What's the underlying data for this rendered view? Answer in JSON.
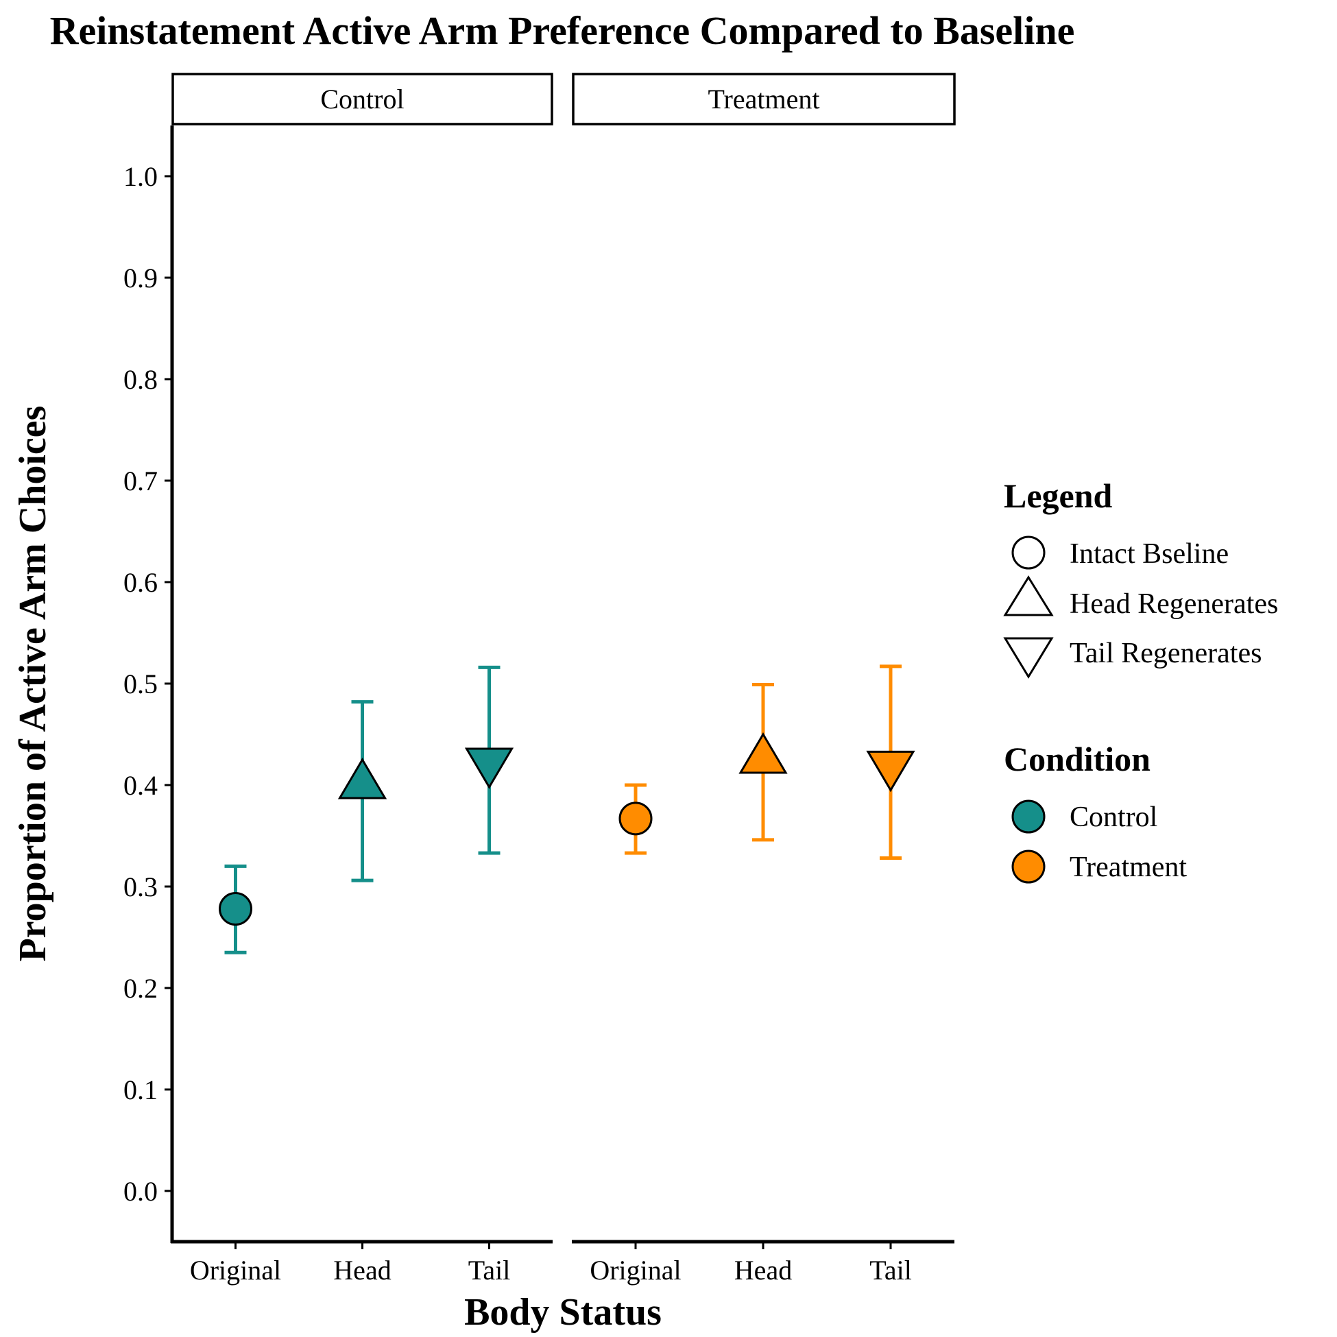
{
  "chart_data": {
    "type": "scatter",
    "title": "Reinstatement Active Arm Preference Compared to Baseline",
    "xlabel": "Body Status",
    "ylabel": "Proportion of Active Arm Choices",
    "ylim": [
      -0.05,
      1.05
    ],
    "yticks": [
      "0.0",
      "0.1",
      "0.2",
      "0.3",
      "0.4",
      "0.5",
      "0.6",
      "0.7",
      "0.8",
      "0.9",
      "1.0"
    ],
    "categories": [
      "Original",
      "Head",
      "Tail"
    ],
    "facets": [
      "Control",
      "Treatment"
    ],
    "grid": false,
    "legend_position": "right",
    "legend_shape": {
      "title": "Legend",
      "items": [
        {
          "label": "Intact Bseline",
          "shape": "circle"
        },
        {
          "label": "Head Regenerates",
          "shape": "triangle-up"
        },
        {
          "label": "Tail Regenerates",
          "shape": "triangle-down"
        }
      ]
    },
    "legend_color": {
      "title": "Condition",
      "items": [
        {
          "label": "Control",
          "color": "#158F8A"
        },
        {
          "label": "Treatment",
          "color": "#FF8C00"
        }
      ]
    },
    "series": [
      {
        "name": "Control",
        "facet": "Control",
        "color": "#158F8A",
        "points": [
          {
            "x": "Original",
            "shape": "circle",
            "y": 0.278,
            "ymin": 0.235,
            "ymax": 0.32
          },
          {
            "x": "Head",
            "shape": "triangle-up",
            "y": 0.4,
            "ymin": 0.306,
            "ymax": 0.482
          },
          {
            "x": "Tail",
            "shape": "triangle-down",
            "y": 0.423,
            "ymin": 0.333,
            "ymax": 0.516
          }
        ]
      },
      {
        "name": "Treatment",
        "facet": "Treatment",
        "color": "#FF8C00",
        "points": [
          {
            "x": "Original",
            "shape": "circle",
            "y": 0.367,
            "ymin": 0.333,
            "ymax": 0.4
          },
          {
            "x": "Head",
            "shape": "triangle-up",
            "y": 0.425,
            "ymin": 0.346,
            "ymax": 0.499
          },
          {
            "x": "Tail",
            "shape": "triangle-down",
            "y": 0.42,
            "ymin": 0.328,
            "ymax": 0.517
          }
        ]
      }
    ]
  }
}
